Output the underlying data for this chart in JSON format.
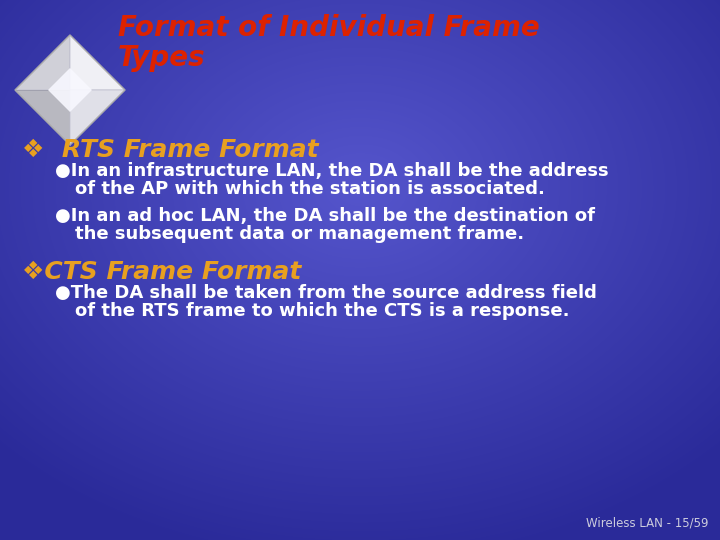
{
  "title_line1": "Format of Individual Frame",
  "title_line2": "Types",
  "title_color": "#dd2200",
  "background_color": "#3a3aaa",
  "section1_heading_prefix": "❖ ",
  "section1_heading": "RTS Frame Format",
  "section1_bullet1": "●In an infrastructure LAN, the DA shall be the address\n    of the AP with which the station is associated.",
  "section1_bullet1_line1": "In an infrastructure LAN, the DA shall be the address",
  "section1_bullet1_line2": "of the AP with which the station is associated.",
  "section1_bullet2_line1": "In an ad hoc LAN, the DA shall be the destination of",
  "section1_bullet2_line2": "the subsequent data or management frame.",
  "section2_heading_prefix": "❖",
  "section2_heading": "CTS Frame Format",
  "section2_bullet1_line1": "The DA shall be taken from the source address field",
  "section2_bullet1_line2": "of the RTS frame to which the CTS is a response.",
  "heading_color": "#e8a020",
  "bullet_text_color": "#ffffff",
  "footer_text": "Wireless LAN - 15/59",
  "footer_color": "#ccccdd",
  "bullet_dot_color": "#e8a020",
  "bullet_char": "●"
}
